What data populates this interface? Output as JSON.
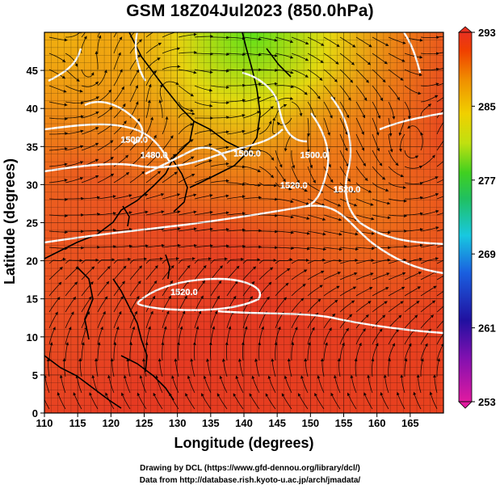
{
  "title": "GSM 18Z04Jul2023 (850.0hPa)",
  "x_axis": {
    "label": "Longitude (degrees)",
    "range": [
      110,
      170
    ],
    "ticks": [
      "110",
      "115",
      "120",
      "125",
      "130",
      "135",
      "140",
      "145",
      "150",
      "155",
      "160",
      "165"
    ]
  },
  "y_axis": {
    "label": "Latitude  (degrees)",
    "range": [
      0,
      50
    ],
    "ticks": [
      "0",
      "5",
      "10",
      "15",
      "20",
      "25",
      "30",
      "35",
      "40",
      "45"
    ]
  },
  "colorbar": {
    "labels": [
      "293",
      "285",
      "277",
      "269",
      "261",
      "253"
    ],
    "range": [
      253,
      293
    ],
    "colors": [
      "#e01aa0",
      "#2010a0",
      "#1a60e0",
      "#18c8e0",
      "#20c040",
      "#60e010",
      "#f0d000",
      "#f09000",
      "#f04000",
      "#e83020"
    ]
  },
  "contour_labels": [
    {
      "text": "1520.0",
      "lon": 131,
      "lat": 15.5
    },
    {
      "text": "1500.0",
      "lon": 123.5,
      "lat": 35.5
    },
    {
      "text": "1480.0",
      "lon": 126.5,
      "lat": 33.5
    },
    {
      "text": "1500.0",
      "lon": 140.5,
      "lat": 33.7
    },
    {
      "text": "1500.0",
      "lon": 150.5,
      "lat": 33.5
    },
    {
      "text": "1520.0",
      "lon": 147.5,
      "lat": 29.5
    },
    {
      "text": "1520.0",
      "lon": 155.5,
      "lat": 29.0
    }
  ],
  "credits": {
    "line1": "Drawing by DCL (https://www.gfd-dennou.org/library/dcl/)",
    "line2": "Data from http://database.rish.kyoto-u.ac.jp/arch/jmadata/"
  }
}
